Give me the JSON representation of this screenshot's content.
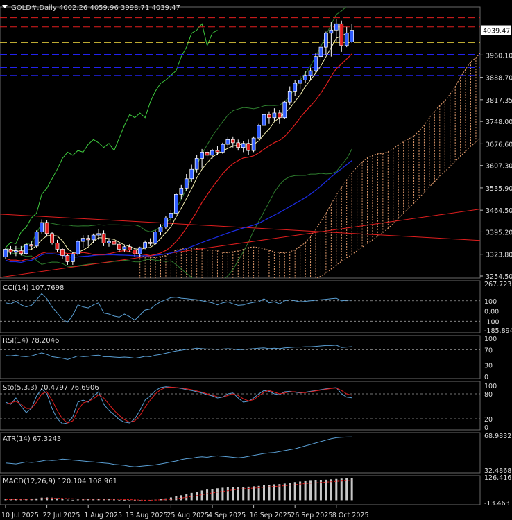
{
  "colors": {
    "background": "#000000",
    "grid": "#2a2a2a",
    "text": "#dcdcdc",
    "bull_candle": "#2f5cff",
    "bear_candle": "#e01e1e",
    "candle_outline": "#ffffff",
    "ma_fast": "#f5f0b0",
    "ma_mid": "#e01e1e",
    "ma_slow": "#1a2adc",
    "bollinger": "#2e7d2e",
    "chikou": "#3ec93e",
    "cloud": "#e8a070",
    "trend_line": "#e01e1e",
    "level_red": "#e01e1e",
    "level_yellow": "#d8c23a",
    "level_blue": "#2222ee",
    "osc_line": "#5a9fd4",
    "stoch_signal": "#e01e1e",
    "macd_hist": "#c8c8c8",
    "price_tag_bg": "#ffffff",
    "price_tag_text": "#000000"
  },
  "chart_data": [
    {
      "type": "candlestick",
      "title": "GOLD#,Daily 4002.26 4059.96 3998.71 4039.47",
      "ylim": [
        3254.5,
        4096.0
      ],
      "y_ticks": [
        "3960.10",
        "3888.70",
        "3817.35",
        "3748.00",
        "3676.60",
        "3607.30",
        "3535.90",
        "3464.50",
        "3395.20",
        "3323.80",
        "3254.50"
      ],
      "current_price": "4039.47",
      "x_ticks": [
        {
          "label": "10 Jul 2025",
          "index": 0
        },
        {
          "label": "22 Jul 2025",
          "index": 8
        },
        {
          "label": "1 Aug 2025",
          "index": 16
        },
        {
          "label": "13 Aug 2025",
          "index": 24
        },
        {
          "label": "25 Aug 2025",
          "index": 32
        },
        {
          "label": "4 Sep 2025",
          "index": 40
        },
        {
          "label": "16 Sep 2025",
          "index": 48
        },
        {
          "label": "26 Sep 2025",
          "index": 56
        },
        {
          "label": "8 Oct 2025",
          "index": 64
        }
      ],
      "horizontal_levels": [
        {
          "value": 4079,
          "color": "red"
        },
        {
          "value": 4050,
          "color": "red"
        },
        {
          "value": 4000,
          "color": "yellow"
        },
        {
          "value": 3962,
          "color": "blue"
        },
        {
          "value": 3920,
          "color": "blue"
        },
        {
          "value": 3895,
          "color": "blue"
        }
      ],
      "candles": [
        [
          3315,
          3345,
          3310,
          3340
        ],
        [
          3340,
          3350,
          3322,
          3330
        ],
        [
          3330,
          3350,
          3318,
          3335
        ],
        [
          3335,
          3350,
          3320,
          3326
        ],
        [
          3326,
          3360,
          3322,
          3355
        ],
        [
          3355,
          3365,
          3340,
          3350
        ],
        [
          3350,
          3400,
          3345,
          3395
        ],
        [
          3395,
          3435,
          3390,
          3425
        ],
        [
          3425,
          3432,
          3380,
          3390
        ],
        [
          3390,
          3396,
          3355,
          3360
        ],
        [
          3360,
          3370,
          3330,
          3340
        ],
        [
          3340,
          3345,
          3310,
          3320
        ],
        [
          3320,
          3325,
          3290,
          3300
        ],
        [
          3300,
          3330,
          3290,
          3325
        ],
        [
          3325,
          3370,
          3320,
          3365
        ],
        [
          3365,
          3385,
          3345,
          3375
        ],
        [
          3375,
          3385,
          3350,
          3370
        ],
        [
          3370,
          3390,
          3360,
          3385
        ],
        [
          3385,
          3405,
          3370,
          3390
        ],
        [
          3390,
          3400,
          3350,
          3360
        ],
        [
          3360,
          3375,
          3348,
          3365
        ],
        [
          3365,
          3372,
          3352,
          3356
        ],
        [
          3356,
          3362,
          3330,
          3340
        ],
        [
          3340,
          3355,
          3330,
          3348
        ],
        [
          3348,
          3356,
          3330,
          3338
        ],
        [
          3338,
          3345,
          3315,
          3325
        ],
        [
          3325,
          3348,
          3315,
          3345
        ],
        [
          3345,
          3368,
          3340,
          3362
        ],
        [
          3362,
          3375,
          3350,
          3358
        ],
        [
          3358,
          3400,
          3355,
          3395
        ],
        [
          3395,
          3420,
          3385,
          3410
        ],
        [
          3410,
          3445,
          3405,
          3440
        ],
        [
          3440,
          3465,
          3420,
          3455
        ],
        [
          3455,
          3520,
          3450,
          3515
        ],
        [
          3515,
          3545,
          3500,
          3535
        ],
        [
          3535,
          3580,
          3525,
          3565
        ],
        [
          3565,
          3610,
          3555,
          3595
        ],
        [
          3595,
          3640,
          3585,
          3630
        ],
        [
          3630,
          3660,
          3600,
          3650
        ],
        [
          3650,
          3660,
          3625,
          3640
        ],
        [
          3640,
          3660,
          3630,
          3655
        ],
        [
          3655,
          3670,
          3640,
          3650
        ],
        [
          3650,
          3680,
          3645,
          3675
        ],
        [
          3675,
          3700,
          3665,
          3690
        ],
        [
          3690,
          3700,
          3665,
          3680
        ],
        [
          3680,
          3690,
          3655,
          3665
        ],
        [
          3665,
          3685,
          3650,
          3678
        ],
        [
          3678,
          3690,
          3640,
          3655
        ],
        [
          3655,
          3700,
          3650,
          3695
        ],
        [
          3695,
          3740,
          3690,
          3735
        ],
        [
          3735,
          3790,
          3725,
          3770
        ],
        [
          3770,
          3780,
          3740,
          3760
        ],
        [
          3760,
          3790,
          3750,
          3775
        ],
        [
          3775,
          3785,
          3740,
          3760
        ],
        [
          3760,
          3815,
          3755,
          3810
        ],
        [
          3810,
          3860,
          3800,
          3845
        ],
        [
          3845,
          3880,
          3830,
          3870
        ],
        [
          3870,
          3895,
          3850,
          3880
        ],
        [
          3880,
          3910,
          3870,
          3895
        ],
        [
          3895,
          3920,
          3880,
          3910
        ],
        [
          3910,
          3965,
          3900,
          3955
        ],
        [
          3955,
          3995,
          3940,
          3985
        ],
        [
          3985,
          4035,
          3960,
          4030
        ],
        [
          4030,
          4065,
          3955,
          4040
        ],
        [
          4040,
          4075,
          4000,
          4060
        ],
        [
          4060,
          4070,
          3970,
          3990
        ],
        [
          3990,
          4050,
          3985,
          4030
        ],
        [
          4002.26,
          4059.96,
          3998.71,
          4039.47
        ]
      ]
    },
    {
      "type": "line",
      "title": "CCI(14) 107.7698",
      "ylim": [
        -185.8945,
        267.7233
      ],
      "y_ticks": [
        "267.7233",
        "100",
        "0.00",
        "-100",
        "-185.8945"
      ],
      "levels": [
        100,
        -100
      ],
      "values": [
        80,
        70,
        95,
        60,
        40,
        55,
        110,
        170,
        120,
        40,
        -20,
        -80,
        -110,
        -40,
        60,
        40,
        30,
        60,
        80,
        -20,
        -30,
        -50,
        -60,
        -30,
        -55,
        -90,
        -40,
        10,
        20,
        60,
        90,
        110,
        130,
        135,
        125,
        120,
        115,
        110,
        100,
        90,
        80,
        60,
        80,
        90,
        70,
        55,
        60,
        75,
        85,
        90,
        120,
        80,
        90,
        70,
        100,
        110,
        100,
        90,
        95,
        100,
        105,
        110,
        115,
        120,
        125,
        100,
        105,
        107.77
      ]
    },
    {
      "type": "line",
      "title": "RSI(14) 78.2046",
      "ylim": [
        0,
        100
      ],
      "y_ticks": [
        "100",
        "70",
        "30",
        "0"
      ],
      "levels": [
        70,
        30
      ],
      "values": [
        55,
        54,
        56,
        53,
        52,
        54,
        58,
        62,
        58,
        52,
        50,
        48,
        45,
        49,
        54,
        52,
        53,
        55,
        56,
        52,
        52,
        51,
        50,
        51,
        50,
        48,
        50,
        53,
        52,
        56,
        58,
        61,
        64,
        67,
        69,
        71,
        72,
        74,
        73,
        72,
        72,
        71,
        72,
        73,
        72,
        70,
        71,
        72,
        73,
        74,
        75,
        73,
        74,
        73,
        75,
        76,
        77,
        77,
        78,
        78,
        79,
        80,
        81,
        81,
        82,
        76,
        77,
        78.2
      ]
    },
    {
      "type": "line",
      "title": "Sto(5,3,3) 70.4797 76.6906",
      "ylim": [
        0,
        100
      ],
      "y_ticks": [
        "100",
        "80",
        "20",
        "0"
      ],
      "levels": [
        80,
        20
      ],
      "series": [
        {
          "name": "main",
          "values": [
            60,
            55,
            70,
            50,
            35,
            45,
            75,
            92,
            80,
            45,
            20,
            8,
            10,
            25,
            60,
            65,
            60,
            75,
            85,
            55,
            40,
            30,
            18,
            12,
            10,
            20,
            40,
            65,
            75,
            88,
            95,
            97,
            96,
            95,
            93,
            90,
            88,
            85,
            82,
            78,
            75,
            70,
            72,
            80,
            82,
            70,
            60,
            62,
            70,
            80,
            88,
            86,
            80,
            78,
            85,
            86,
            84,
            82,
            84,
            86,
            88,
            90,
            92,
            94,
            95,
            80,
            72,
            70.48
          ]
        },
        {
          "name": "signal",
          "values": [
            55,
            58,
            62,
            55,
            45,
            45,
            60,
            80,
            85,
            65,
            40,
            20,
            10,
            15,
            40,
            58,
            62,
            68,
            78,
            70,
            55,
            40,
            28,
            18,
            12,
            15,
            28,
            48,
            65,
            80,
            90,
            95,
            96,
            95,
            94,
            92,
            90,
            87,
            84,
            80,
            77,
            73,
            72,
            76,
            80,
            76,
            68,
            63,
            66,
            75,
            84,
            88,
            84,
            80,
            82,
            85,
            85,
            83,
            83,
            85,
            87,
            89,
            91,
            93,
            94,
            88,
            80,
            76.69
          ]
        }
      ]
    },
    {
      "type": "line",
      "title": "ATR(14) 67.3243",
      "ylim": [
        32.4868,
        68.9832
      ],
      "y_ticks": [
        "68.9832",
        "32.4868"
      ],
      "values": [
        40,
        39.5,
        39,
        40,
        41,
        40.5,
        41,
        42,
        43,
        42.5,
        43,
        44,
        43.5,
        43,
        42.5,
        42,
        41.5,
        41,
        40.5,
        40,
        39.5,
        38.5,
        38,
        37.5,
        36.5,
        36,
        36.5,
        37,
        37.5,
        38,
        39,
        40,
        41,
        42,
        43.5,
        44.5,
        45,
        46,
        46.5,
        46,
        47,
        47.5,
        47,
        46.5,
        46,
        45.5,
        46,
        47,
        48,
        49,
        50,
        50.5,
        51,
        52,
        53,
        54,
        55,
        56.5,
        58,
        59.5,
        61,
        62.5,
        64,
        65.5,
        66.5,
        67,
        67.2,
        67.32
      ]
    },
    {
      "type": "bar",
      "title": "MACD(12,26,9) 120.104 108.961",
      "ylim": [
        -13.463,
        126.416
      ],
      "y_ticks": [
        "126.416",
        "-13.463"
      ],
      "series": [
        {
          "name": "MACD",
          "values": [
            5,
            5,
            6,
            6,
            6,
            8,
            10,
            14,
            15,
            14,
            11,
            7,
            3,
            2,
            4,
            5,
            5,
            6,
            7,
            6,
            5,
            4,
            2,
            1,
            -1,
            -2,
            -2,
            -1,
            0,
            3,
            6,
            10,
            15,
            21,
            27,
            33,
            40,
            47,
            53,
            58,
            62,
            65,
            68,
            70,
            72,
            72,
            73,
            74,
            76,
            78,
            82,
            84,
            87,
            88,
            91,
            95,
            99,
            102,
            104,
            106,
            108,
            110,
            112,
            114,
            116,
            118,
            119,
            120.1
          ]
        },
        {
          "name": "Signal",
          "values": [
            4,
            4,
            5,
            5,
            5,
            6,
            7,
            8,
            9,
            10,
            10,
            10,
            9,
            8,
            7,
            6,
            6,
            6,
            6,
            6,
            6,
            5,
            5,
            4,
            3,
            2,
            1,
            0,
            0,
            1,
            2,
            3,
            5,
            8,
            12,
            16,
            20,
            25,
            30,
            35,
            40,
            44,
            48,
            52,
            56,
            59,
            62,
            64,
            66,
            68,
            71,
            73,
            75,
            77,
            79,
            82,
            85,
            88,
            91,
            93,
            95,
            97,
            99,
            101,
            103,
            105,
            107,
            108.96
          ]
        }
      ]
    }
  ]
}
